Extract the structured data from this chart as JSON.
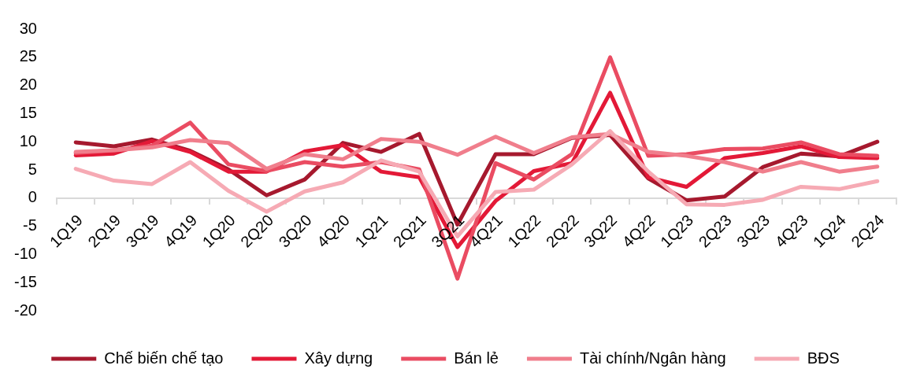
{
  "chart_data": {
    "type": "line",
    "categories": [
      "1Q19",
      "2Q19",
      "3Q19",
      "4Q19",
      "1Q20",
      "2Q20",
      "3Q20",
      "4Q20",
      "1Q21",
      "2Q21",
      "3Q21",
      "4Q21",
      "1Q22",
      "2Q22",
      "3Q22",
      "4Q22",
      "1Q23",
      "2Q23",
      "3Q23",
      "4Q23",
      "1Q24",
      "2Q24"
    ],
    "series": [
      {
        "name": "Chế biến chế tạo",
        "color": "#a6192e",
        "values": [
          9.9,
          9.2,
          10.4,
          8.4,
          5.1,
          0.5,
          3.3,
          9.8,
          8.2,
          11.4,
          -4.7,
          7.8,
          7.8,
          10.7,
          11.2,
          3.5,
          -0.4,
          0.3,
          5.5,
          7.9,
          7.4,
          10.0
        ]
      },
      {
        "name": "Xây dựng",
        "color": "#e31937",
        "values": [
          7.6,
          7.9,
          10.1,
          8.2,
          4.7,
          4.7,
          8.3,
          9.4,
          4.7,
          3.7,
          -8.7,
          -0.5,
          4.8,
          6.2,
          18.7,
          3.7,
          2.0,
          7.1,
          8.0,
          9.2,
          7.3,
          7.1
        ]
      },
      {
        "name": "Bán lẻ",
        "color": "#ea4c62",
        "values": [
          8.0,
          8.5,
          9.3,
          13.4,
          6.0,
          4.8,
          6.4,
          5.6,
          6.4,
          5.1,
          -14.3,
          6.2,
          3.3,
          7.8,
          25.0,
          7.5,
          7.8,
          8.7,
          8.8,
          9.9,
          7.8,
          7.5
        ]
      },
      {
        "name": "Tài chính/Ngân hàng",
        "color": "#f07e8c",
        "values": [
          8.2,
          8.5,
          9.0,
          10.3,
          9.8,
          5.2,
          7.8,
          6.9,
          10.5,
          10.0,
          7.7,
          10.9,
          8.0,
          10.8,
          11.4,
          8.2,
          7.5,
          6.4,
          4.7,
          6.4,
          4.7,
          5.6
        ]
      },
      {
        "name": "BĐS",
        "color": "#f6aab4",
        "values": [
          5.2,
          3.1,
          2.5,
          6.4,
          1.3,
          -2.4,
          1.2,
          2.8,
          6.7,
          4.7,
          -6.8,
          1.1,
          1.5,
          6.0,
          11.9,
          4.7,
          -1.1,
          -1.2,
          -0.3,
          2.0,
          1.6,
          3.0
        ]
      }
    ],
    "ylim": [
      -20,
      30
    ],
    "yticks": [
      -20,
      -15,
      -10,
      -5,
      0,
      5,
      10,
      15,
      20,
      25,
      30
    ],
    "grid": false,
    "legend": "bottom",
    "line_style": "solid"
  }
}
